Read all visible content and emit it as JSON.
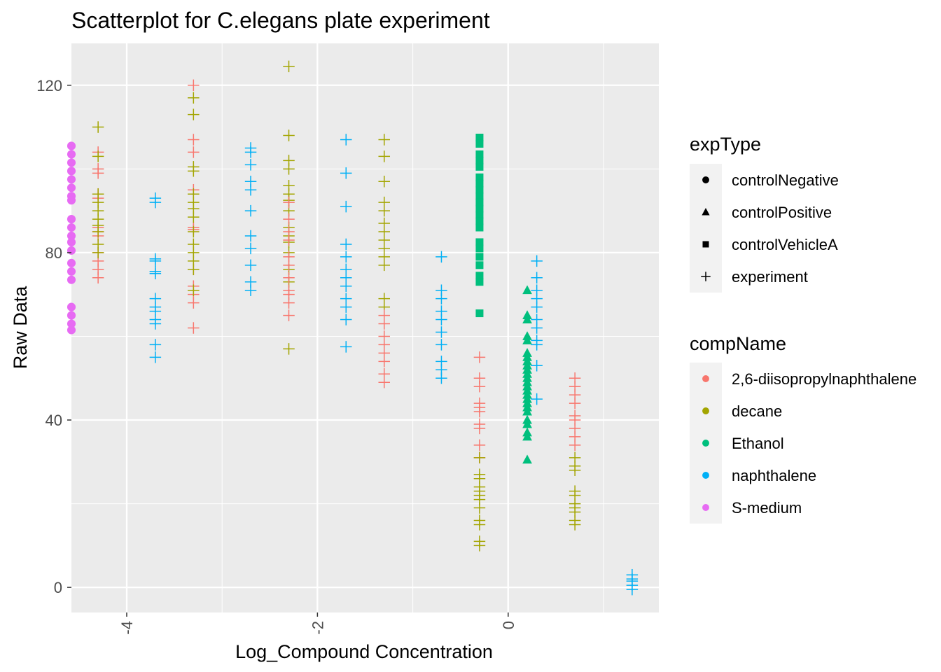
{
  "chart_data": {
    "type": "scatter",
    "title": "Scatterplot for C.elegans plate experiment",
    "xlabel": "Log_Compound Concentration",
    "ylabel": "Raw Data",
    "xlim": [
      -4.58,
      1.58
    ],
    "ylim": [
      -6,
      130
    ],
    "x_ticks": [
      -4,
      -2,
      0
    ],
    "x_tick_labels": [
      "-4",
      "-2",
      "0"
    ],
    "y_ticks": [
      0,
      40,
      80,
      120
    ],
    "y_tick_labels": [
      "0",
      "40",
      "80",
      "120"
    ],
    "grid": true,
    "legend_position": "right",
    "legends": [
      {
        "title": "expType",
        "entries": [
          {
            "label": "controlNegative",
            "shape": "circle"
          },
          {
            "label": "controlPositive",
            "shape": "triangle"
          },
          {
            "label": "controlVehicleA",
            "shape": "square"
          },
          {
            "label": "experiment",
            "shape": "plus"
          }
        ]
      },
      {
        "title": "compName",
        "entries": [
          {
            "label": "2,6-diisopropylnaphthalene",
            "color": "#F8766D"
          },
          {
            "label": "decane",
            "color": "#A3A500"
          },
          {
            "label": "Ethanol",
            "color": "#00BF7D"
          },
          {
            "label": "naphthalene",
            "color": "#00B0F6"
          },
          {
            "label": "S-medium",
            "color": "#E76BF3"
          }
        ]
      }
    ],
    "series": [
      {
        "compName": "S-medium",
        "expType": "controlNegative",
        "x": -4.58,
        "y": [
          105.5,
          103.5,
          101.5,
          99.5,
          97.5,
          95.5,
          93.5,
          92.5,
          88,
          86,
          84,
          82.5,
          80.5,
          77.5,
          75.5,
          73.5,
          67,
          65,
          63,
          61.5
        ]
      },
      {
        "compName": "2,6-diisopropylnaphthalene",
        "expType": "experiment",
        "x": -4.3,
        "y": [
          104,
          100,
          99,
          94,
          93,
          86,
          85,
          84,
          80,
          78,
          76,
          74
        ]
      },
      {
        "compName": "decane",
        "expType": "experiment",
        "x": -4.3,
        "y": [
          110,
          103,
          94,
          92,
          90,
          88,
          86.5,
          85,
          82,
          80
        ]
      },
      {
        "compName": "naphthalene",
        "expType": "experiment",
        "x": -3.7,
        "y": [
          93,
          92,
          78.5,
          78,
          75.5,
          75,
          69,
          67,
          66,
          64,
          63,
          58,
          55
        ]
      },
      {
        "compName": "2,6-diisopropylnaphthalene",
        "expType": "experiment",
        "x": -3.3,
        "y": [
          120,
          107,
          104,
          95,
          86,
          85.5,
          76,
          72,
          70,
          68,
          62
        ]
      },
      {
        "compName": "decane",
        "expType": "experiment",
        "x": -3.3,
        "y": [
          117,
          113,
          100.5,
          99.5,
          94,
          92,
          90.5,
          88.5,
          85,
          82,
          80,
          78,
          76,
          71
        ]
      },
      {
        "compName": "naphthalene",
        "expType": "experiment",
        "x": -2.7,
        "y": [
          105,
          104,
          101,
          97,
          95,
          90,
          84,
          81,
          77,
          73,
          71
        ]
      },
      {
        "compName": "decane",
        "expType": "experiment",
        "x": -2.3,
        "y": [
          124.5,
          108,
          102,
          100,
          96,
          94,
          92.5,
          90,
          86,
          84,
          82.5,
          80,
          76,
          73,
          57
        ]
      },
      {
        "compName": "2,6-diisopropylnaphthalene",
        "expType": "experiment",
        "x": -2.3,
        "y": [
          92,
          88,
          85,
          83,
          79,
          77,
          74,
          71,
          70,
          68,
          65
        ]
      },
      {
        "compName": "naphthalene",
        "expType": "experiment",
        "x": -1.7,
        "y": [
          107,
          99,
          91,
          82,
          79,
          76,
          74,
          72,
          69,
          67,
          64,
          57.5
        ]
      },
      {
        "compName": "decane",
        "expType": "experiment",
        "x": -1.3,
        "y": [
          107,
          103,
          97,
          92,
          90,
          87,
          85,
          83,
          81,
          79,
          77,
          69,
          67
        ]
      },
      {
        "compName": "2,6-diisopropylnaphthalene",
        "expType": "experiment",
        "x": -1.3,
        "y": [
          65,
          63,
          60,
          58,
          56,
          54,
          51,
          49
        ]
      },
      {
        "compName": "naphthalene",
        "expType": "experiment",
        "x": -0.7,
        "y": [
          79,
          71,
          69,
          66,
          64,
          61,
          58,
          54,
          52,
          50
        ]
      },
      {
        "compName": "Ethanol",
        "expType": "controlVehicleA",
        "x": -0.3,
        "y": [
          107.5,
          106,
          103.5,
          102,
          100.5,
          98,
          96.5,
          95,
          93.5,
          92,
          90.5,
          89,
          87.5,
          86,
          82.5,
          81,
          79,
          77,
          74.5,
          73,
          65.5
        ]
      },
      {
        "compName": "2,6-diisopropylnaphthalene",
        "expType": "experiment",
        "x": -0.3,
        "y": [
          55,
          50,
          48,
          44,
          43,
          42,
          39,
          38,
          34,
          31
        ]
      },
      {
        "compName": "decane",
        "expType": "experiment",
        "x": -0.3,
        "y": [
          31,
          27,
          26,
          24,
          23,
          22,
          21,
          19,
          16,
          15,
          11,
          10
        ]
      },
      {
        "compName": "Ethanol",
        "expType": "controlPositive",
        "x": 0.2,
        "y": [
          71,
          65,
          64,
          60,
          59,
          56,
          55,
          54,
          53,
          52,
          51,
          50,
          49,
          48,
          47,
          46,
          45,
          44,
          43,
          42,
          40,
          39,
          37,
          36,
          30.5
        ]
      },
      {
        "compName": "naphthalene",
        "expType": "experiment",
        "x": 0.3,
        "y": [
          78,
          74,
          71,
          69,
          67,
          64,
          62,
          59,
          58,
          53,
          45
        ]
      },
      {
        "compName": "2,6-diisopropylnaphthalene",
        "expType": "experiment",
        "x": 0.7,
        "y": [
          50,
          48,
          46,
          44,
          41,
          40,
          38,
          36,
          34
        ]
      },
      {
        "compName": "decane",
        "expType": "experiment",
        "x": 0.7,
        "y": [
          31,
          29,
          28,
          23,
          22,
          20,
          19,
          18,
          16,
          15
        ]
      },
      {
        "compName": "naphthalene",
        "expType": "experiment",
        "x": 1.3,
        "y": [
          3,
          2,
          1.5,
          0.5,
          -0.5
        ]
      }
    ]
  }
}
